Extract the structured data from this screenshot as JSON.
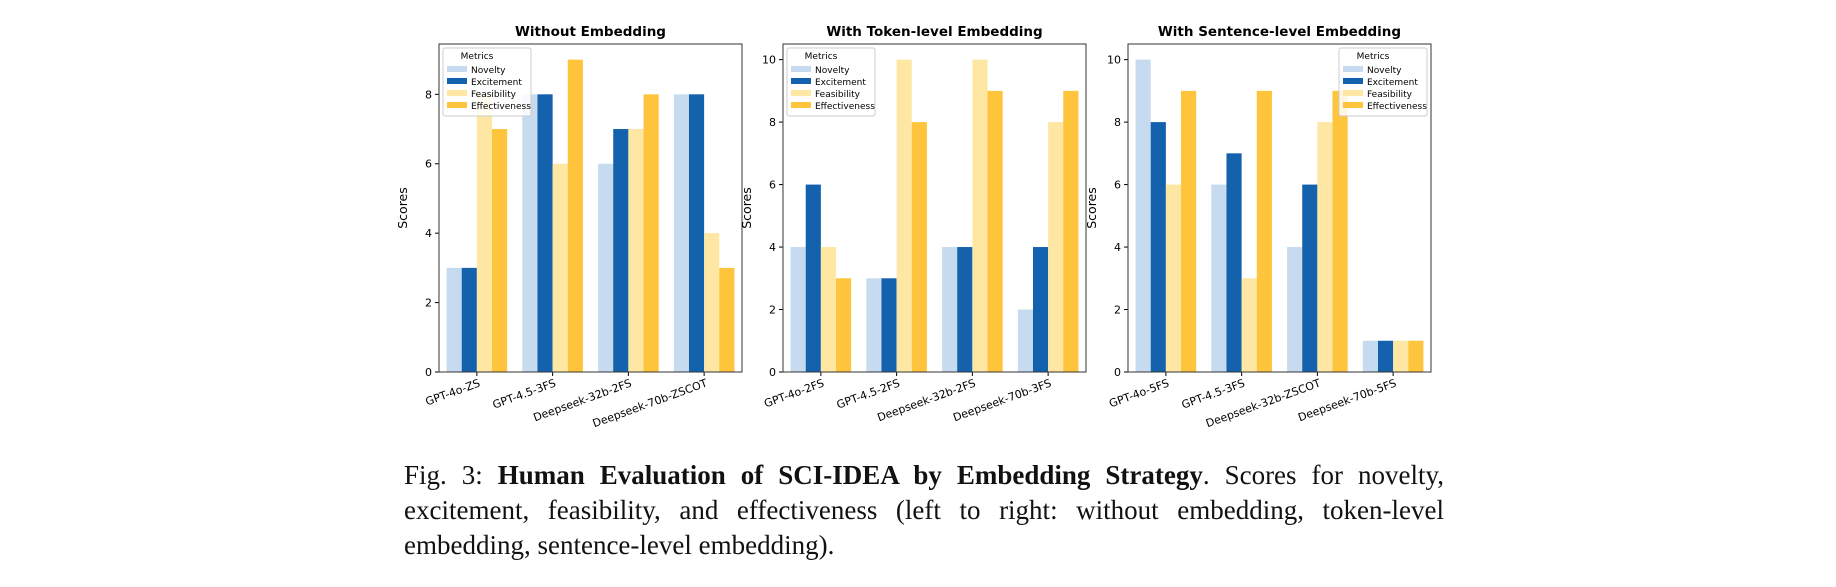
{
  "chart_data": [
    {
      "type": "bar",
      "title": "Without Embedding",
      "ylabel": "Scores",
      "legend_title": "Metrics",
      "legend": "upper left",
      "categories": [
        "GPT-4o-ZS",
        "GPT-4.5-3FS",
        "Deepseek-32b-2FS",
        "Deepseek-70b-ZSCOT"
      ],
      "series": [
        {
          "name": "Novelty",
          "color": "#c6dbef",
          "values": [
            3,
            8,
            6,
            8
          ]
        },
        {
          "name": "Excitement",
          "color": "#1461ad",
          "values": [
            3,
            8,
            7,
            8
          ]
        },
        {
          "name": "Feasibility",
          "color": "#fee6a3",
          "values": [
            8,
            6,
            7,
            4
          ]
        },
        {
          "name": "Effectiveness",
          "color": "#fec43c",
          "values": [
            7,
            9,
            8,
            3
          ]
        }
      ],
      "ylim": [
        0,
        9.45
      ],
      "yticks": [
        0,
        2,
        4,
        6,
        8
      ]
    },
    {
      "type": "bar",
      "title": "With Token-level Embedding",
      "ylabel": "Scores",
      "legend_title": "Metrics",
      "legend": "upper left",
      "categories": [
        "GPT-4o-2FS",
        "GPT-4.5-2FS",
        "Deepseek-32b-2FS",
        "Deepseek-70b-3FS"
      ],
      "series": [
        {
          "name": "Novelty",
          "color": "#c6dbef",
          "values": [
            4,
            3,
            4,
            2
          ]
        },
        {
          "name": "Excitement",
          "color": "#1461ad",
          "values": [
            6,
            3,
            4,
            4
          ]
        },
        {
          "name": "Feasibility",
          "color": "#fee6a3",
          "values": [
            4,
            10,
            10,
            8
          ]
        },
        {
          "name": "Effectiveness",
          "color": "#fec43c",
          "values": [
            3,
            8,
            9,
            9
          ]
        }
      ],
      "ylim": [
        0,
        10.5
      ],
      "yticks": [
        0,
        2,
        4,
        6,
        8,
        10
      ]
    },
    {
      "type": "bar",
      "title": "With Sentence-level Embedding",
      "ylabel": "Scores",
      "legend_title": "Metrics",
      "legend": "upper right",
      "categories": [
        "GPT-4o-5FS",
        "GPT-4.5-3FS",
        "Deepseek-32b-ZSCOT",
        "Deepseek-70b-5FS"
      ],
      "series": [
        {
          "name": "Novelty",
          "color": "#c6dbef",
          "values": [
            10,
            6,
            4,
            1
          ]
        },
        {
          "name": "Excitement",
          "color": "#1461ad",
          "values": [
            8,
            7,
            6,
            1
          ]
        },
        {
          "name": "Feasibility",
          "color": "#fee6a3",
          "values": [
            6,
            3,
            8,
            1
          ]
        },
        {
          "name": "Effectiveness",
          "color": "#fec43c",
          "values": [
            9,
            9,
            9,
            1
          ]
        }
      ],
      "ylim": [
        0,
        10.5
      ],
      "yticks": [
        0,
        2,
        4,
        6,
        8,
        10
      ]
    }
  ],
  "caption": {
    "label": "Fig. 3:",
    "title": "Human Evaluation of SCI-IDEA by Embedding Strategy",
    "text": ". Scores for novelty, excitement, feasibility, and effectiveness (left to right: without embedding, token-level embedding, sentence-level embedding)."
  }
}
